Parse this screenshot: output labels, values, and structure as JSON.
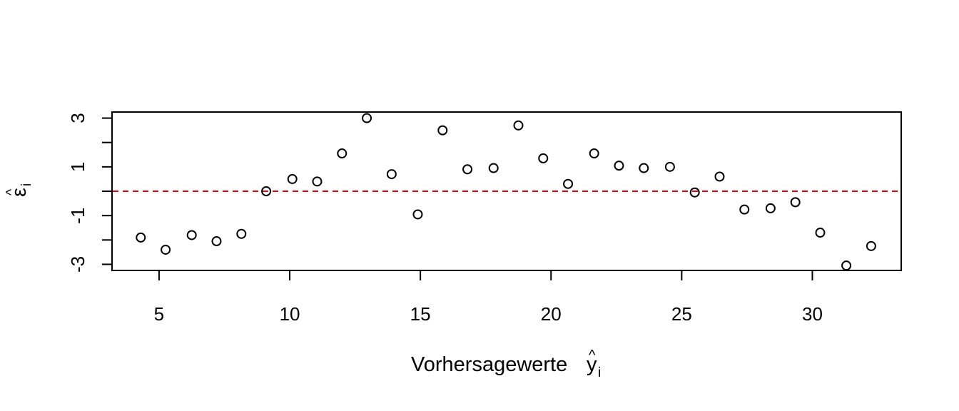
{
  "chart_data": {
    "type": "scatter",
    "title": "",
    "xlabel": "Vorhersagewerte",
    "xlabel_symbol": "y",
    "xlabel_hat": "^",
    "xlabel_subscript": "i",
    "ylabel_symbol": "ε",
    "ylabel_hat": "^",
    "ylabel_subscript": "i",
    "xlim": [
      3.2,
      33.4
    ],
    "ylim": [
      -3.25,
      3.25
    ],
    "x_ticks": [
      5,
      10,
      15,
      20,
      25,
      30
    ],
    "x_tick_labels": [
      "5",
      "10",
      "15",
      "20",
      "25",
      "30"
    ],
    "y_ticks": [
      -3,
      -2,
      -1,
      0,
      1,
      2,
      3
    ],
    "y_tick_labels": [
      "-3",
      "",
      "-1",
      "",
      "1",
      "",
      "3"
    ],
    "grid": false,
    "legend": "none",
    "reference_line": {
      "y": 0,
      "style": "dashed",
      "color": "#e8000b"
    },
    "point_style": "open-circle",
    "point_color": "#000000",
    "x": [
      4.3,
      5.25,
      6.25,
      7.2,
      8.15,
      9.1,
      10.1,
      11.05,
      12.0,
      12.95,
      13.9,
      14.9,
      15.85,
      16.8,
      17.8,
      18.75,
      19.7,
      20.65,
      21.65,
      22.6,
      23.55,
      24.55,
      25.5,
      26.45,
      27.4,
      28.4,
      29.35,
      30.3,
      31.3,
      32.25
    ],
    "y": [
      -1.9,
      -2.4,
      -1.8,
      -2.05,
      -1.75,
      0.0,
      0.5,
      0.4,
      1.55,
      3.0,
      0.7,
      -0.95,
      2.5,
      0.9,
      0.95,
      2.7,
      1.35,
      0.3,
      1.55,
      1.05,
      0.95,
      1.0,
      -0.05,
      0.6,
      -0.75,
      -0.7,
      -0.45,
      -1.7,
      -3.05,
      -2.25
    ]
  }
}
